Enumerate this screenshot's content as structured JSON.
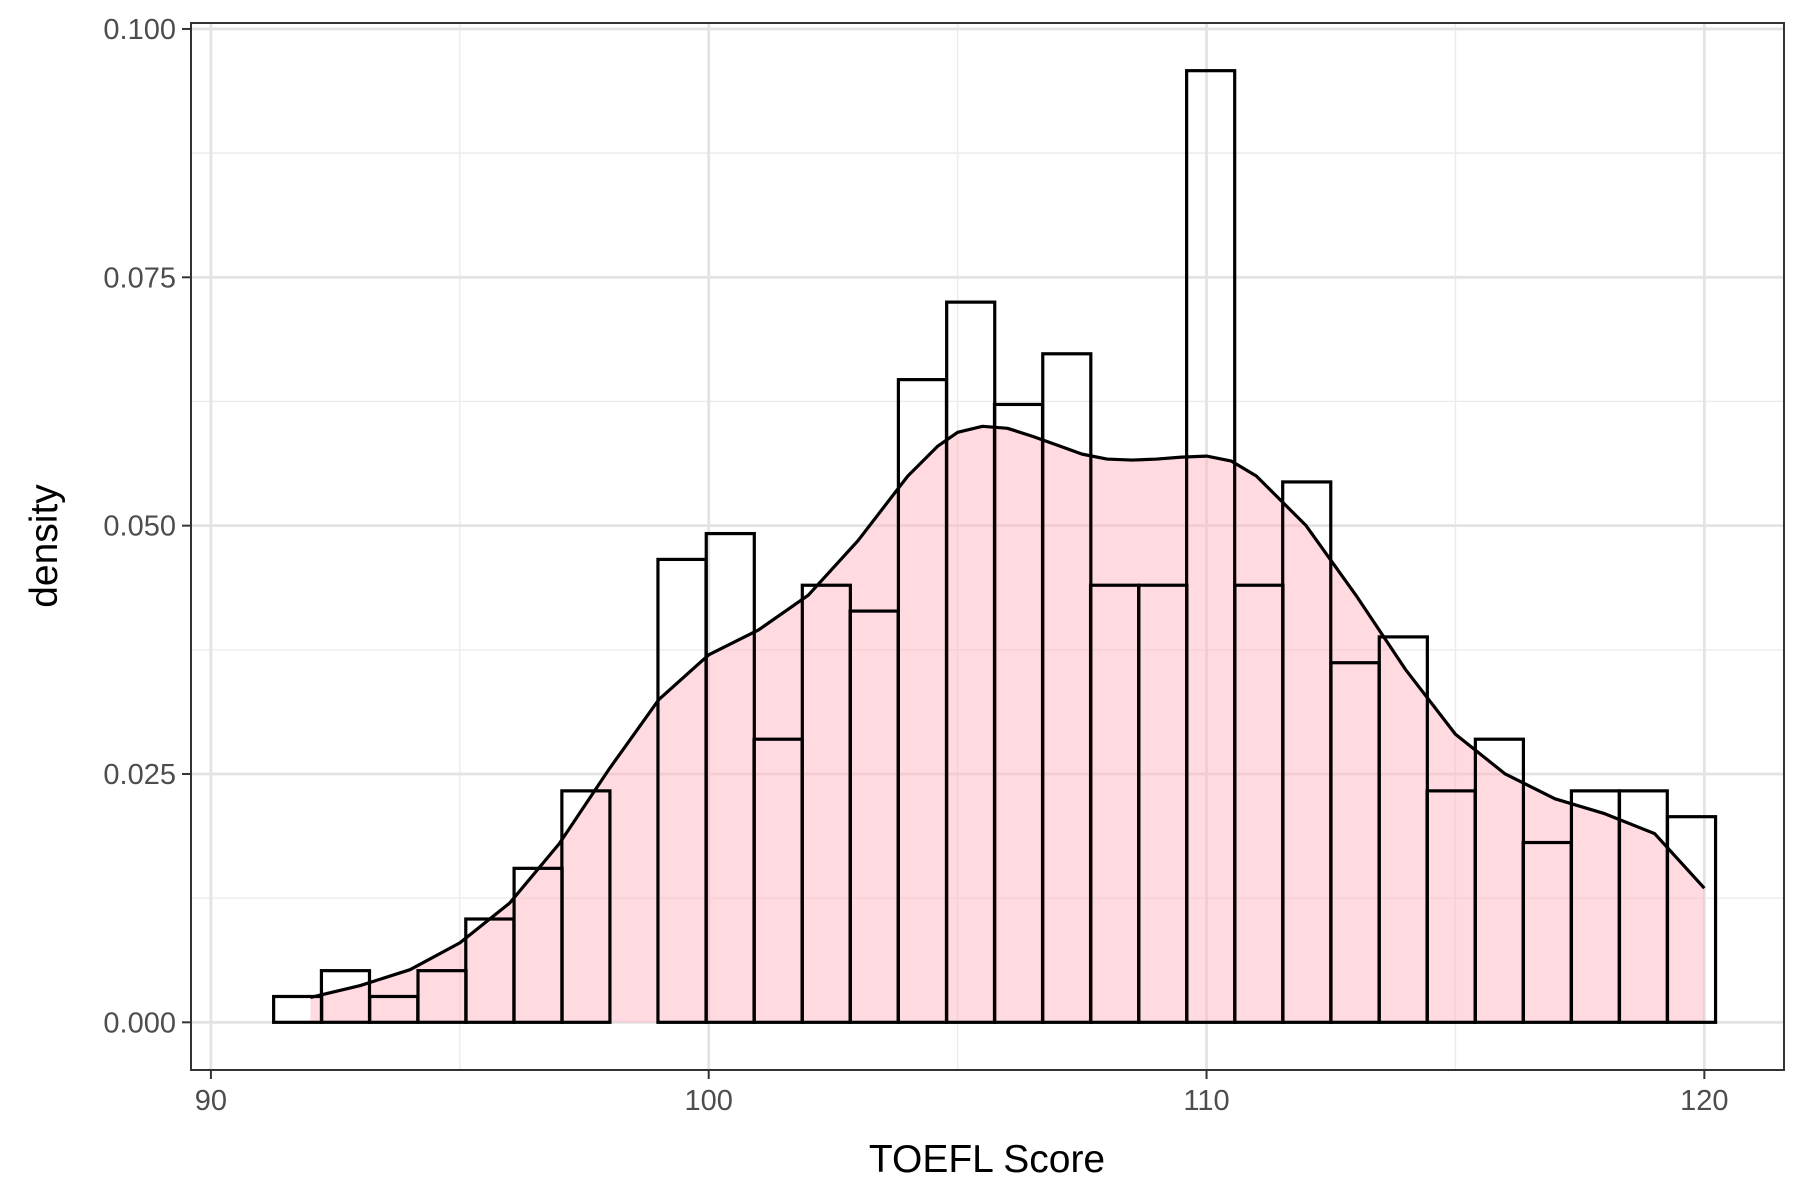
{
  "chart_data": {
    "type": "bar",
    "subtype": "histogram-with-density",
    "xlabel": "TOEFL Score",
    "ylabel": "density",
    "xlim": [
      89.6,
      121.6
    ],
    "ylim": [
      -0.0048,
      0.1006
    ],
    "x_ticks": [
      90,
      100,
      110,
      120
    ],
    "y_ticks": [
      0.0,
      0.025,
      0.05,
      0.075,
      0.1
    ],
    "x_tick_labels": [
      "90",
      "100",
      "110",
      "120"
    ],
    "y_tick_labels": [
      "0.000",
      "0.025",
      "0.050",
      "0.075",
      "0.100"
    ],
    "grid": true,
    "legend": "none",
    "histogram": {
      "bin_width": 0.9655,
      "bin_lefts": [
        91.26,
        92.22,
        93.19,
        94.16,
        95.12,
        96.09,
        97.05,
        98.02,
        98.98,
        99.95,
        100.91,
        101.88,
        102.84,
        103.81,
        104.78,
        105.74,
        106.71,
        107.67,
        108.64,
        109.6,
        110.57,
        111.53,
        112.5,
        113.47,
        114.43,
        115.4,
        116.36,
        117.33,
        118.29,
        119.26
      ],
      "density": [
        0.0026,
        0.0052,
        0.0026,
        0.0052,
        0.0104,
        0.0155,
        0.0233,
        0.0,
        0.0466,
        0.0492,
        0.0285,
        0.044,
        0.0414,
        0.0647,
        0.0725,
        0.0622,
        0.0673,
        0.044,
        0.044,
        0.0958,
        0.044,
        0.0544,
        0.0362,
        0.0388,
        0.0233,
        0.0285,
        0.0181,
        0.0233,
        0.0233,
        0.0207
      ],
      "fill": "#ffffff",
      "stroke": "#000000"
    },
    "density_curve": {
      "x": [
        92,
        93,
        94,
        95,
        96,
        97,
        98,
        99,
        100,
        101,
        102,
        103,
        104,
        104.6,
        105,
        105.5,
        106,
        106.5,
        107,
        107.5,
        108,
        108.5,
        109,
        109.5,
        110,
        110.5,
        111,
        112,
        113,
        114,
        115,
        116,
        117,
        118,
        119,
        120
      ],
      "y": [
        0.0025,
        0.0037,
        0.0053,
        0.008,
        0.012,
        0.018,
        0.0255,
        0.0325,
        0.037,
        0.0395,
        0.043,
        0.0485,
        0.055,
        0.058,
        0.0594,
        0.06,
        0.0598,
        0.059,
        0.0581,
        0.0572,
        0.0567,
        0.0566,
        0.0567,
        0.0569,
        0.057,
        0.0565,
        0.055,
        0.05,
        0.043,
        0.0355,
        0.029,
        0.025,
        0.0225,
        0.021,
        0.019,
        0.0135
      ],
      "fill": "#ffb6c1",
      "fill_opacity": 0.5,
      "stroke": "#000000"
    }
  }
}
